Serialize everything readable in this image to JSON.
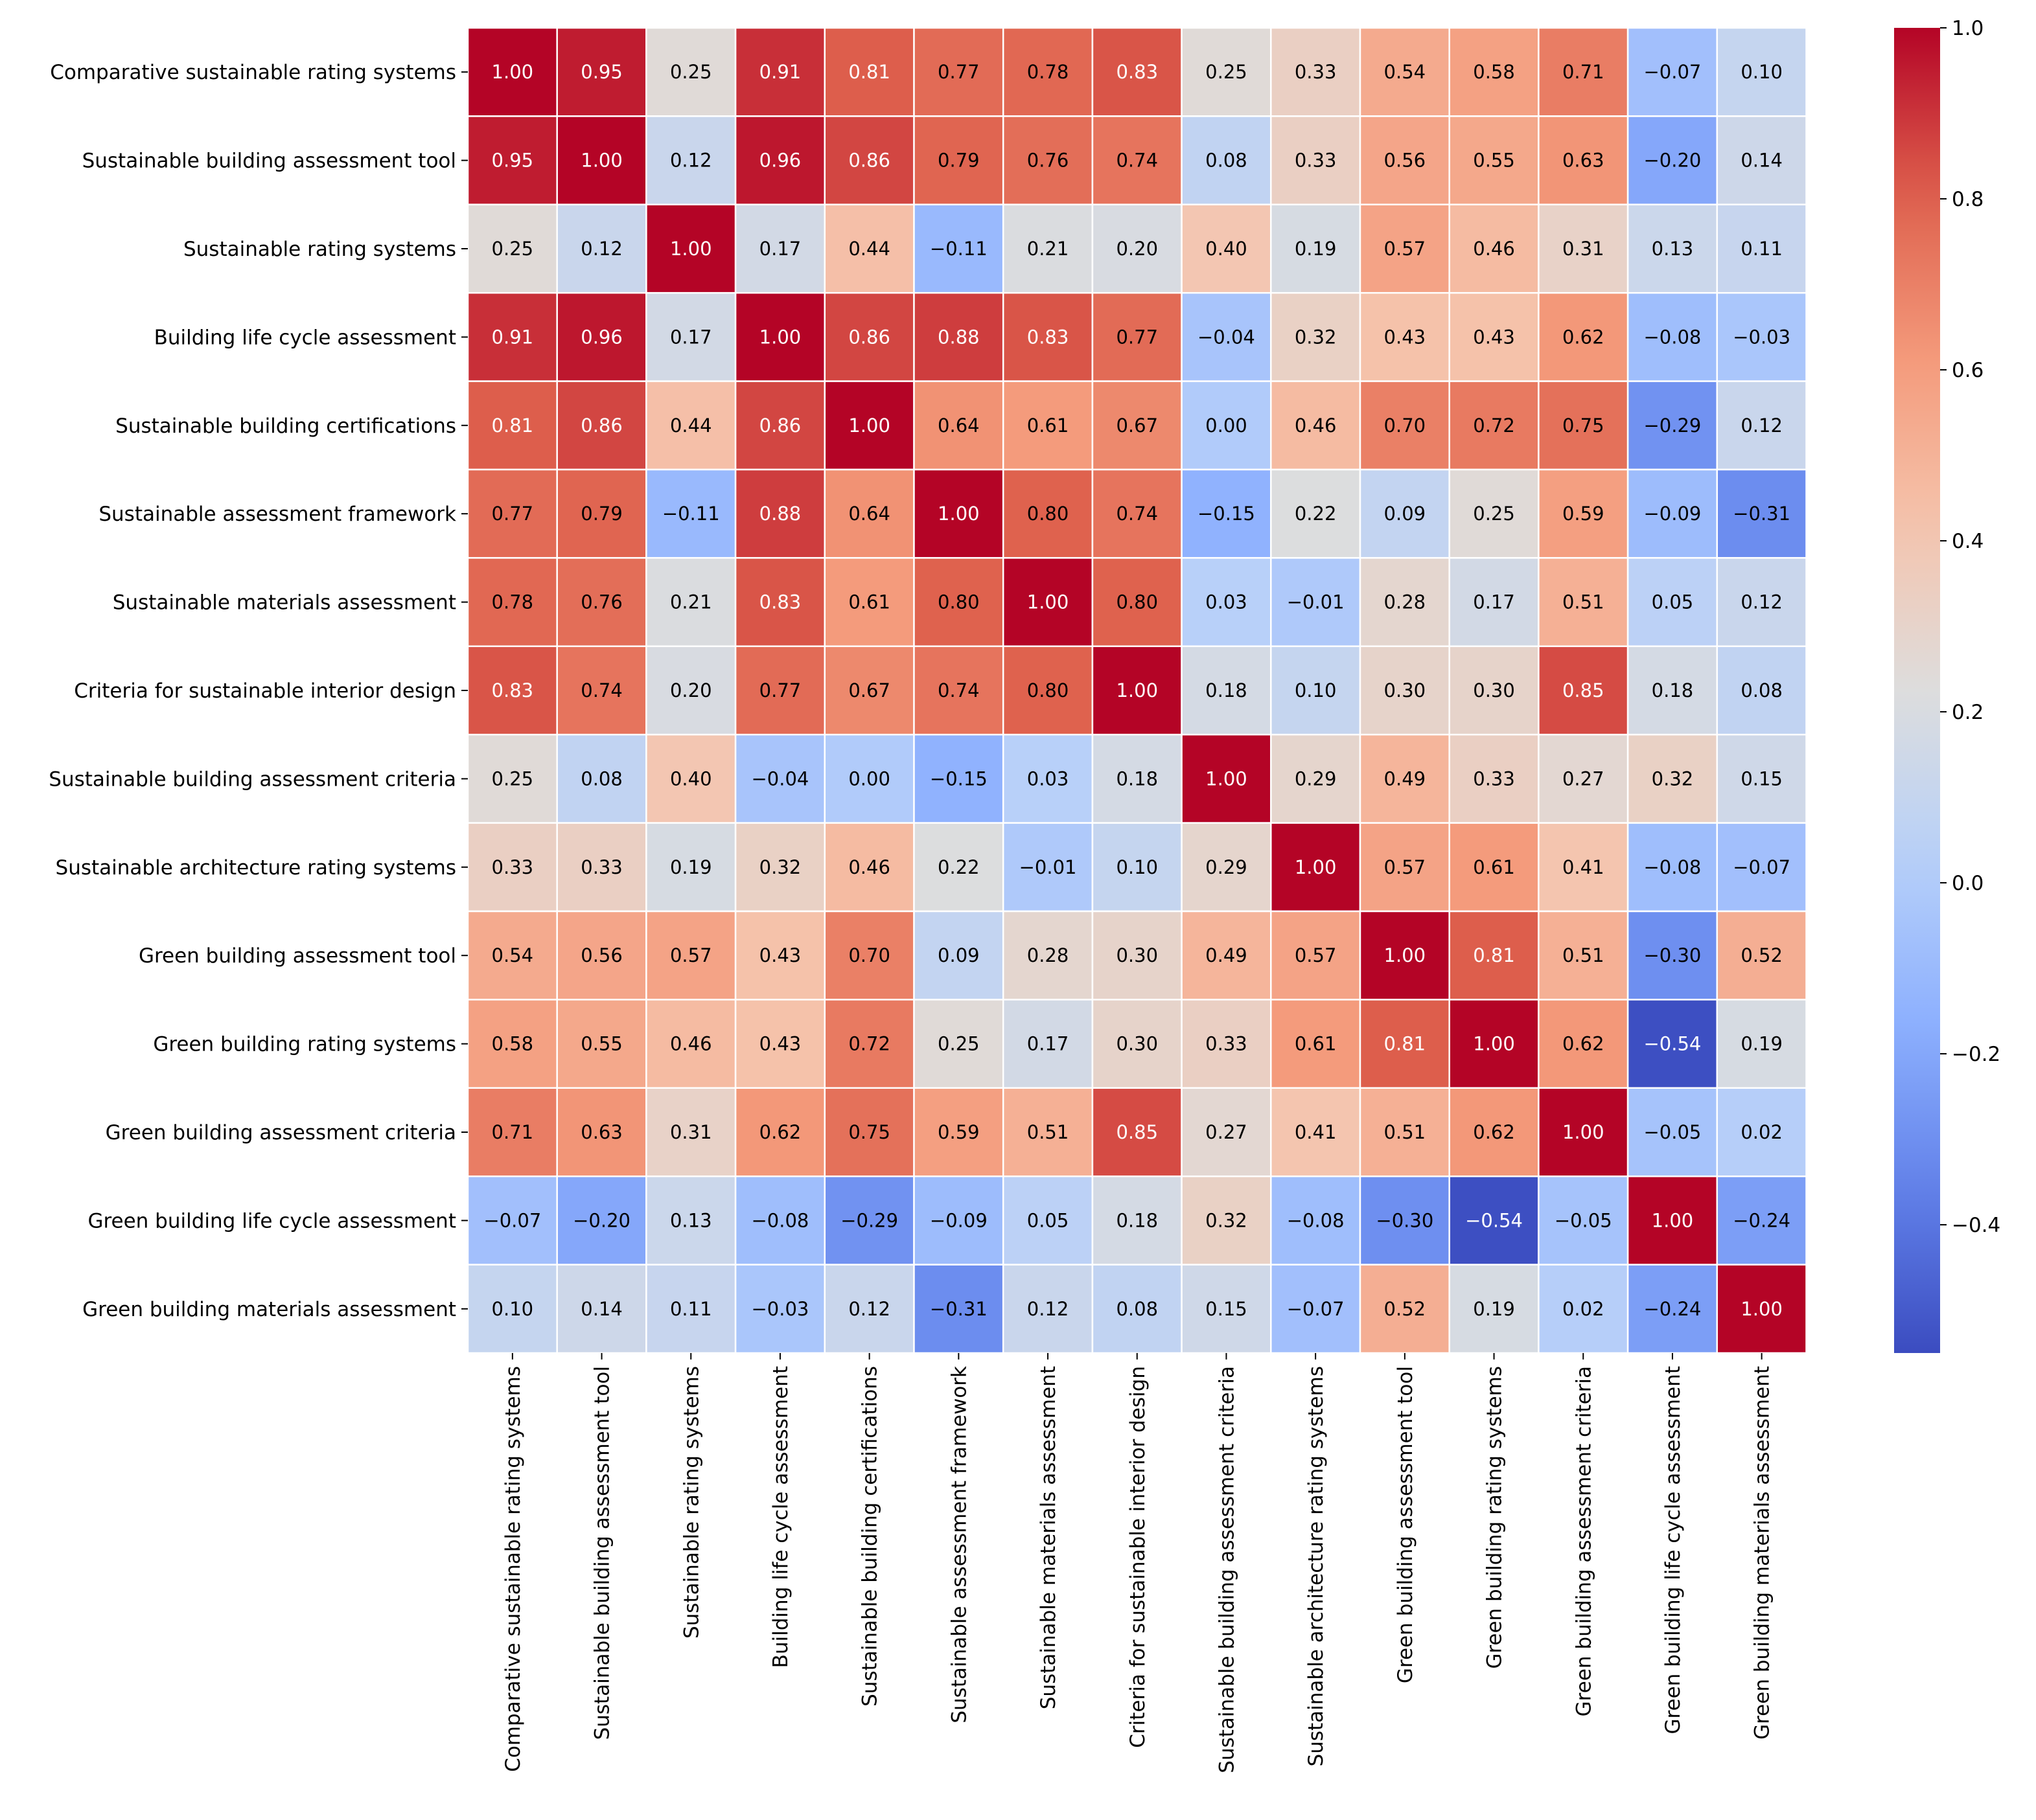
{
  "chart_data": {
    "type": "heatmap",
    "title": "",
    "xlabel": "",
    "ylabel": "",
    "colormap": "coolwarm",
    "vmin": -0.55,
    "vmax": 1.0,
    "row_labels": [
      "Comparative sustainable rating systems",
      "Sustainable building assessment tool",
      "Sustainable rating systems",
      "Building life cycle assessment",
      "Sustainable building certifications",
      "Sustainable assessment framework",
      "Sustainable materials assessment",
      "Criteria for sustainable interior design",
      "Sustainable building assessment criteria",
      "Sustainable architecture rating systems",
      "Green building assessment tool",
      "Green building rating systems",
      "Green building assessment criteria",
      "Green building life cycle assessment",
      "Green building materials assessment"
    ],
    "col_labels": [
      "Comparative sustainable rating systems",
      "Sustainable building assessment tool",
      "Sustainable rating systems",
      "Building life cycle assessment",
      "Sustainable building certifications",
      "Sustainable assessment framework",
      "Sustainable materials assessment",
      "Criteria for sustainable interior design",
      "Sustainable building assessment criteria",
      "Sustainable architecture rating systems",
      "Green building assessment tool",
      "Green building rating systems",
      "Green building assessment criteria",
      "Green building life cycle assessment",
      "Green building materials assessment"
    ],
    "values": [
      [
        1.0,
        0.95,
        0.25,
        0.91,
        0.81,
        0.77,
        0.78,
        0.83,
        0.25,
        0.33,
        0.54,
        0.58,
        0.71,
        -0.07,
        0.1
      ],
      [
        0.95,
        1.0,
        0.12,
        0.96,
        0.86,
        0.79,
        0.76,
        0.74,
        0.08,
        0.33,
        0.56,
        0.55,
        0.63,
        -0.2,
        0.14
      ],
      [
        0.25,
        0.12,
        1.0,
        0.17,
        0.44,
        -0.11,
        0.21,
        0.2,
        0.4,
        0.19,
        0.57,
        0.46,
        0.31,
        0.13,
        0.11
      ],
      [
        0.91,
        0.96,
        0.17,
        1.0,
        0.86,
        0.88,
        0.83,
        0.77,
        -0.04,
        0.32,
        0.43,
        0.43,
        0.62,
        -0.08,
        -0.03
      ],
      [
        0.81,
        0.86,
        0.44,
        0.86,
        1.0,
        0.64,
        0.61,
        0.67,
        0.0,
        0.46,
        0.7,
        0.72,
        0.75,
        -0.29,
        0.12
      ],
      [
        0.77,
        0.79,
        -0.11,
        0.88,
        0.64,
        1.0,
        0.8,
        0.74,
        -0.15,
        0.22,
        0.09,
        0.25,
        0.59,
        -0.09,
        -0.31
      ],
      [
        0.78,
        0.76,
        0.21,
        0.83,
        0.61,
        0.8,
        1.0,
        0.8,
        0.03,
        -0.01,
        0.28,
        0.17,
        0.51,
        0.05,
        0.12
      ],
      [
        0.83,
        0.74,
        0.2,
        0.77,
        0.67,
        0.74,
        0.8,
        1.0,
        0.18,
        0.1,
        0.3,
        0.3,
        0.85,
        0.18,
        0.08
      ],
      [
        0.25,
        0.08,
        0.4,
        -0.04,
        0.0,
        -0.15,
        0.03,
        0.18,
        1.0,
        0.29,
        0.49,
        0.33,
        0.27,
        0.32,
        0.15
      ],
      [
        0.33,
        0.33,
        0.19,
        0.32,
        0.46,
        0.22,
        -0.01,
        0.1,
        0.29,
        1.0,
        0.57,
        0.61,
        0.41,
        -0.08,
        -0.07
      ],
      [
        0.54,
        0.56,
        0.57,
        0.43,
        0.7,
        0.09,
        0.28,
        0.3,
        0.49,
        0.57,
        1.0,
        0.81,
        0.51,
        -0.3,
        0.52
      ],
      [
        0.58,
        0.55,
        0.46,
        0.43,
        0.72,
        0.25,
        0.17,
        0.3,
        0.33,
        0.61,
        0.81,
        1.0,
        0.62,
        -0.54,
        0.19
      ],
      [
        0.71,
        0.63,
        0.31,
        0.62,
        0.75,
        0.59,
        0.51,
        0.85,
        0.27,
        0.41,
        0.51,
        0.62,
        1.0,
        -0.05,
        0.02
      ],
      [
        -0.07,
        -0.2,
        0.13,
        -0.08,
        -0.29,
        -0.09,
        0.05,
        0.18,
        0.32,
        -0.08,
        -0.3,
        -0.54,
        -0.05,
        1.0,
        -0.24
      ],
      [
        0.1,
        0.14,
        0.11,
        -0.03,
        0.12,
        -0.31,
        0.12,
        0.08,
        0.15,
        -0.07,
        0.52,
        0.19,
        0.02,
        -0.24,
        1.0
      ]
    ],
    "colorbar": {
      "ticks": [
        -0.4,
        -0.2,
        0.0,
        0.2,
        0.4,
        0.6,
        0.8,
        1.0
      ],
      "tick_labels": [
        "−0.4",
        "−0.2",
        "0.0",
        "0.2",
        "0.4",
        "0.6",
        "0.8",
        "1.0"
      ]
    }
  }
}
